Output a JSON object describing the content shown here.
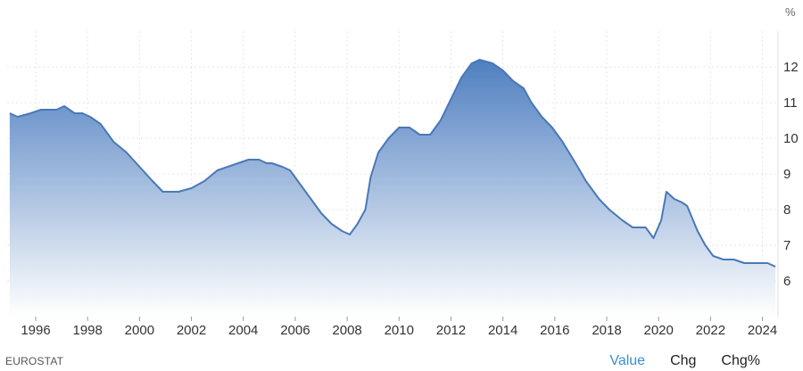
{
  "unit_label": "%",
  "source": "EUROSTAT",
  "tabs": [
    {
      "label": "Value",
      "active": true
    },
    {
      "label": "Chg",
      "active": false
    },
    {
      "label": "Chg%",
      "active": false
    }
  ],
  "colors": {
    "line": "#4a78b8",
    "fill_top": "#4f7fc0",
    "fill_bottom": "#ffffff",
    "grid": "#e6e6e6",
    "tab_active": "#3a8fd0"
  },
  "chart_data": {
    "type": "area",
    "title": "",
    "xlabel": "",
    "ylabel": "%",
    "xlim": [
      1994.9,
      2024.6
    ],
    "ylim": [
      5.0,
      13.0
    ],
    "x_ticks": [
      1996,
      1998,
      2000,
      2002,
      2004,
      2006,
      2008,
      2010,
      2012,
      2014,
      2016,
      2018,
      2020,
      2022,
      2024
    ],
    "y_ticks": [
      6,
      7,
      8,
      9,
      10,
      11,
      12
    ],
    "grid": true,
    "legend": "none",
    "series": [
      {
        "points": [
          [
            1995.0,
            10.7
          ],
          [
            1995.3,
            10.6
          ],
          [
            1995.8,
            10.7
          ],
          [
            1996.2,
            10.8
          ],
          [
            1996.8,
            10.8
          ],
          [
            1997.1,
            10.9
          ],
          [
            1997.5,
            10.7
          ],
          [
            1997.8,
            10.7
          ],
          [
            1998.1,
            10.6
          ],
          [
            1998.5,
            10.4
          ],
          [
            1999.0,
            9.9
          ],
          [
            1999.5,
            9.6
          ],
          [
            2000.0,
            9.2
          ],
          [
            2000.5,
            8.8
          ],
          [
            2000.9,
            8.5
          ],
          [
            2001.5,
            8.5
          ],
          [
            2002.0,
            8.6
          ],
          [
            2002.5,
            8.8
          ],
          [
            2003.0,
            9.1
          ],
          [
            2003.4,
            9.2
          ],
          [
            2003.8,
            9.3
          ],
          [
            2004.2,
            9.4
          ],
          [
            2004.6,
            9.4
          ],
          [
            2004.9,
            9.3
          ],
          [
            2005.1,
            9.3
          ],
          [
            2005.5,
            9.2
          ],
          [
            2005.8,
            9.1
          ],
          [
            2006.2,
            8.7
          ],
          [
            2006.6,
            8.3
          ],
          [
            2007.0,
            7.9
          ],
          [
            2007.4,
            7.6
          ],
          [
            2007.8,
            7.4
          ],
          [
            2008.1,
            7.3
          ],
          [
            2008.4,
            7.6
          ],
          [
            2008.7,
            8.0
          ],
          [
            2008.9,
            8.9
          ],
          [
            2009.2,
            9.6
          ],
          [
            2009.6,
            10.0
          ],
          [
            2010.0,
            10.3
          ],
          [
            2010.4,
            10.3
          ],
          [
            2010.8,
            10.1
          ],
          [
            2011.2,
            10.1
          ],
          [
            2011.6,
            10.5
          ],
          [
            2012.0,
            11.1
          ],
          [
            2012.4,
            11.7
          ],
          [
            2012.8,
            12.1
          ],
          [
            2013.1,
            12.2
          ],
          [
            2013.6,
            12.1
          ],
          [
            2014.0,
            11.9
          ],
          [
            2014.4,
            11.6
          ],
          [
            2014.8,
            11.4
          ],
          [
            2015.1,
            11.0
          ],
          [
            2015.5,
            10.6
          ],
          [
            2015.9,
            10.3
          ],
          [
            2016.3,
            9.9
          ],
          [
            2016.8,
            9.3
          ],
          [
            2017.2,
            8.8
          ],
          [
            2017.7,
            8.3
          ],
          [
            2018.1,
            8.0
          ],
          [
            2018.6,
            7.7
          ],
          [
            2019.0,
            7.5
          ],
          [
            2019.5,
            7.5
          ],
          [
            2019.8,
            7.2
          ],
          [
            2020.1,
            7.7
          ],
          [
            2020.3,
            8.5
          ],
          [
            2020.6,
            8.3
          ],
          [
            2020.9,
            8.2
          ],
          [
            2021.1,
            8.1
          ],
          [
            2021.5,
            7.4
          ],
          [
            2021.8,
            7.0
          ],
          [
            2022.1,
            6.7
          ],
          [
            2022.5,
            6.6
          ],
          [
            2022.9,
            6.6
          ],
          [
            2023.3,
            6.5
          ],
          [
            2023.6,
            6.5
          ],
          [
            2023.9,
            6.5
          ],
          [
            2024.2,
            6.5
          ],
          [
            2024.5,
            6.4
          ]
        ]
      }
    ]
  }
}
